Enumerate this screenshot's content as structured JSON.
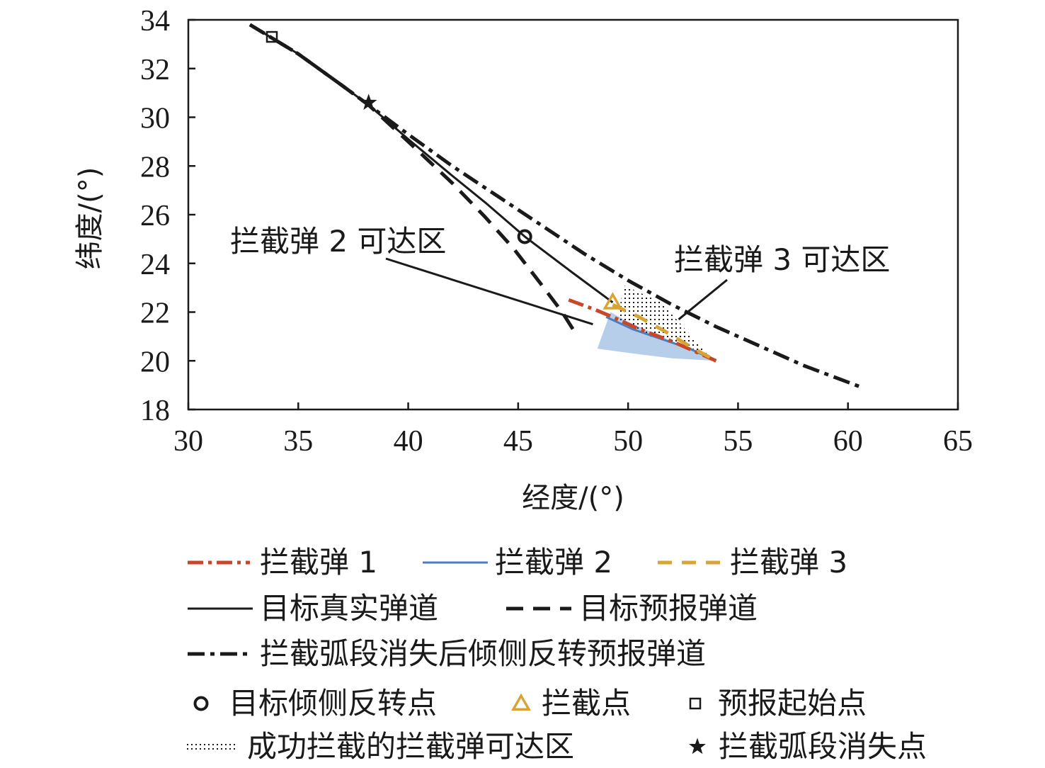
{
  "chart_data": {
    "type": "line",
    "xlabel": "经度/(°)",
    "ylabel": "纬度/(°)",
    "xlim": [
      30,
      65
    ],
    "ylim": [
      18,
      34
    ],
    "xticks": [
      30,
      35,
      40,
      45,
      50,
      55,
      60,
      65
    ],
    "yticks": [
      18,
      20,
      22,
      24,
      26,
      28,
      30,
      32,
      34
    ],
    "grid": false,
    "legend_position": "bottom",
    "series": [
      {
        "key": "i1",
        "name": "拦截弹 1",
        "color": "#c8462a",
        "dash": "22,7,5,7",
        "width": 5,
        "points": [
          [
            47.3,
            22.5
          ],
          [
            48.5,
            22.1
          ],
          [
            49.3,
            21.8
          ],
          [
            50.5,
            21.3
          ],
          [
            52.0,
            20.8
          ],
          [
            53.0,
            20.4
          ],
          [
            54.0,
            20.0
          ]
        ]
      },
      {
        "key": "i2",
        "name": "拦截弹 2",
        "color": "#4a7fbf",
        "dash": "",
        "width": 3,
        "points": [
          [
            49.0,
            21.8
          ],
          [
            50.2,
            21.3
          ],
          [
            51.5,
            20.9
          ],
          [
            52.8,
            20.5
          ],
          [
            54.0,
            20.0
          ]
        ]
      },
      {
        "key": "i3",
        "name": "拦截弹 3",
        "color": "#d8a535",
        "dash": "20,14",
        "width": 5,
        "points": [
          [
            49.3,
            22.3
          ],
          [
            50.5,
            21.8
          ],
          [
            51.7,
            21.2
          ],
          [
            52.8,
            20.6
          ],
          [
            54.0,
            20.0
          ]
        ]
      },
      {
        "key": "true",
        "name": "目标真实弹道",
        "color": "#1a1a1a",
        "dash": "",
        "width": 3,
        "points": [
          [
            32.8,
            33.8
          ],
          [
            35.0,
            32.6
          ],
          [
            37.0,
            31.3
          ],
          [
            38.2,
            30.5
          ],
          [
            40.0,
            29.1
          ],
          [
            42.0,
            27.6
          ],
          [
            43.5,
            26.5
          ],
          [
            45.3,
            25.1
          ],
          [
            47.5,
            23.6
          ],
          [
            49.3,
            22.4
          ]
        ]
      },
      {
        "key": "pred",
        "name": "目标预报弹道",
        "color": "#1a1a1a",
        "dash": "24,14",
        "width": 5,
        "points": [
          [
            32.8,
            33.8
          ],
          [
            35.0,
            32.6
          ],
          [
            37.0,
            31.3
          ],
          [
            38.2,
            30.5
          ],
          [
            40.0,
            29.0
          ],
          [
            42.0,
            27.3
          ],
          [
            43.5,
            25.9
          ],
          [
            44.8,
            24.6
          ],
          [
            46.0,
            23.2
          ],
          [
            47.0,
            22.0
          ],
          [
            47.7,
            21.0
          ]
        ]
      },
      {
        "key": "roll",
        "name": "拦截弧段消失后倾侧反转预报弹道",
        "color": "#1a1a1a",
        "dash": "24,8,6,8",
        "width": 5,
        "points": [
          [
            32.8,
            33.8
          ],
          [
            35.0,
            32.6
          ],
          [
            37.0,
            31.3
          ],
          [
            38.2,
            30.5
          ],
          [
            40.0,
            29.3
          ],
          [
            42.0,
            28.0
          ],
          [
            44.0,
            26.8
          ],
          [
            46.0,
            25.6
          ],
          [
            48.0,
            24.4
          ],
          [
            50.0,
            23.3
          ],
          [
            52.0,
            22.3
          ],
          [
            54.0,
            21.4
          ],
          [
            56.0,
            20.6
          ],
          [
            58.0,
            19.8
          ],
          [
            60.5,
            18.95
          ]
        ]
      }
    ],
    "regions": [
      {
        "key": "reach2",
        "name": "拦截弹 2 可达区",
        "color": "#a9c6e6",
        "points": [
          [
            48.6,
            20.5
          ],
          [
            49.2,
            22.0
          ],
          [
            50.0,
            21.6
          ],
          [
            51.5,
            21.0
          ],
          [
            53.0,
            20.4
          ],
          [
            54.0,
            20.0
          ],
          [
            52.0,
            20.1
          ],
          [
            50.2,
            20.3
          ]
        ]
      },
      {
        "key": "reach3",
        "name": "拦截弹 3 可达区",
        "dotted": true,
        "points": [
          [
            49.8,
            23.1
          ],
          [
            51.5,
            22.4
          ],
          [
            53.6,
            20.3
          ],
          [
            51.0,
            21.0
          ],
          [
            49.5,
            21.6
          ]
        ]
      }
    ],
    "markers": [
      {
        "key": "roll_point",
        "name": "目标倾侧反转点",
        "shape": "circle",
        "color": "#1a1a1a",
        "x": 45.3,
        "y": 25.1
      },
      {
        "key": "intercept_point",
        "name": "拦截点",
        "shape": "triangle",
        "color": "#d8a535",
        "x": 49.3,
        "y": 22.4
      },
      {
        "key": "forecast_start",
        "name": "预报起始点",
        "shape": "square",
        "color": "#1a1a1a",
        "x": 33.8,
        "y": 33.3
      },
      {
        "key": "vanish_point",
        "name": "拦截弧段消失点",
        "shape": "star",
        "color": "#1a1a1a",
        "x": 38.2,
        "y": 30.6
      }
    ],
    "annotations": [
      {
        "key": "anno2",
        "text": "拦截弹 2 可达区",
        "target": [
          48.4,
          21.5
        ]
      },
      {
        "key": "anno3",
        "text": "拦截弹 3 可达区",
        "target": [
          52.3,
          21.7
        ]
      }
    ],
    "legend": [
      {
        "label": "拦截弹 1",
        "kind": "line",
        "ref": "i1"
      },
      {
        "label": "拦截弹 2",
        "kind": "line",
        "ref": "i2"
      },
      {
        "label": "拦截弹 3",
        "kind": "line",
        "ref": "i3"
      },
      {
        "label": "目标真实弹道",
        "kind": "line",
        "ref": "true"
      },
      {
        "label": "目标预报弹道",
        "kind": "line",
        "ref": "pred"
      },
      {
        "label": "拦截弧段消失后倾侧反转预报弹道",
        "kind": "line",
        "ref": "roll"
      },
      {
        "label": "目标倾侧反转点",
        "kind": "marker",
        "ref": "roll_point"
      },
      {
        "label": "拦截点",
        "kind": "marker",
        "ref": "intercept_point"
      },
      {
        "label": "预报起始点",
        "kind": "marker",
        "ref": "forecast_start"
      },
      {
        "label": "成功拦截的拦截弹可达区",
        "kind": "dots",
        "ref": "reach3"
      },
      {
        "label": "拦截弧段消失点",
        "kind": "marker",
        "ref": "vanish_point"
      }
    ]
  }
}
